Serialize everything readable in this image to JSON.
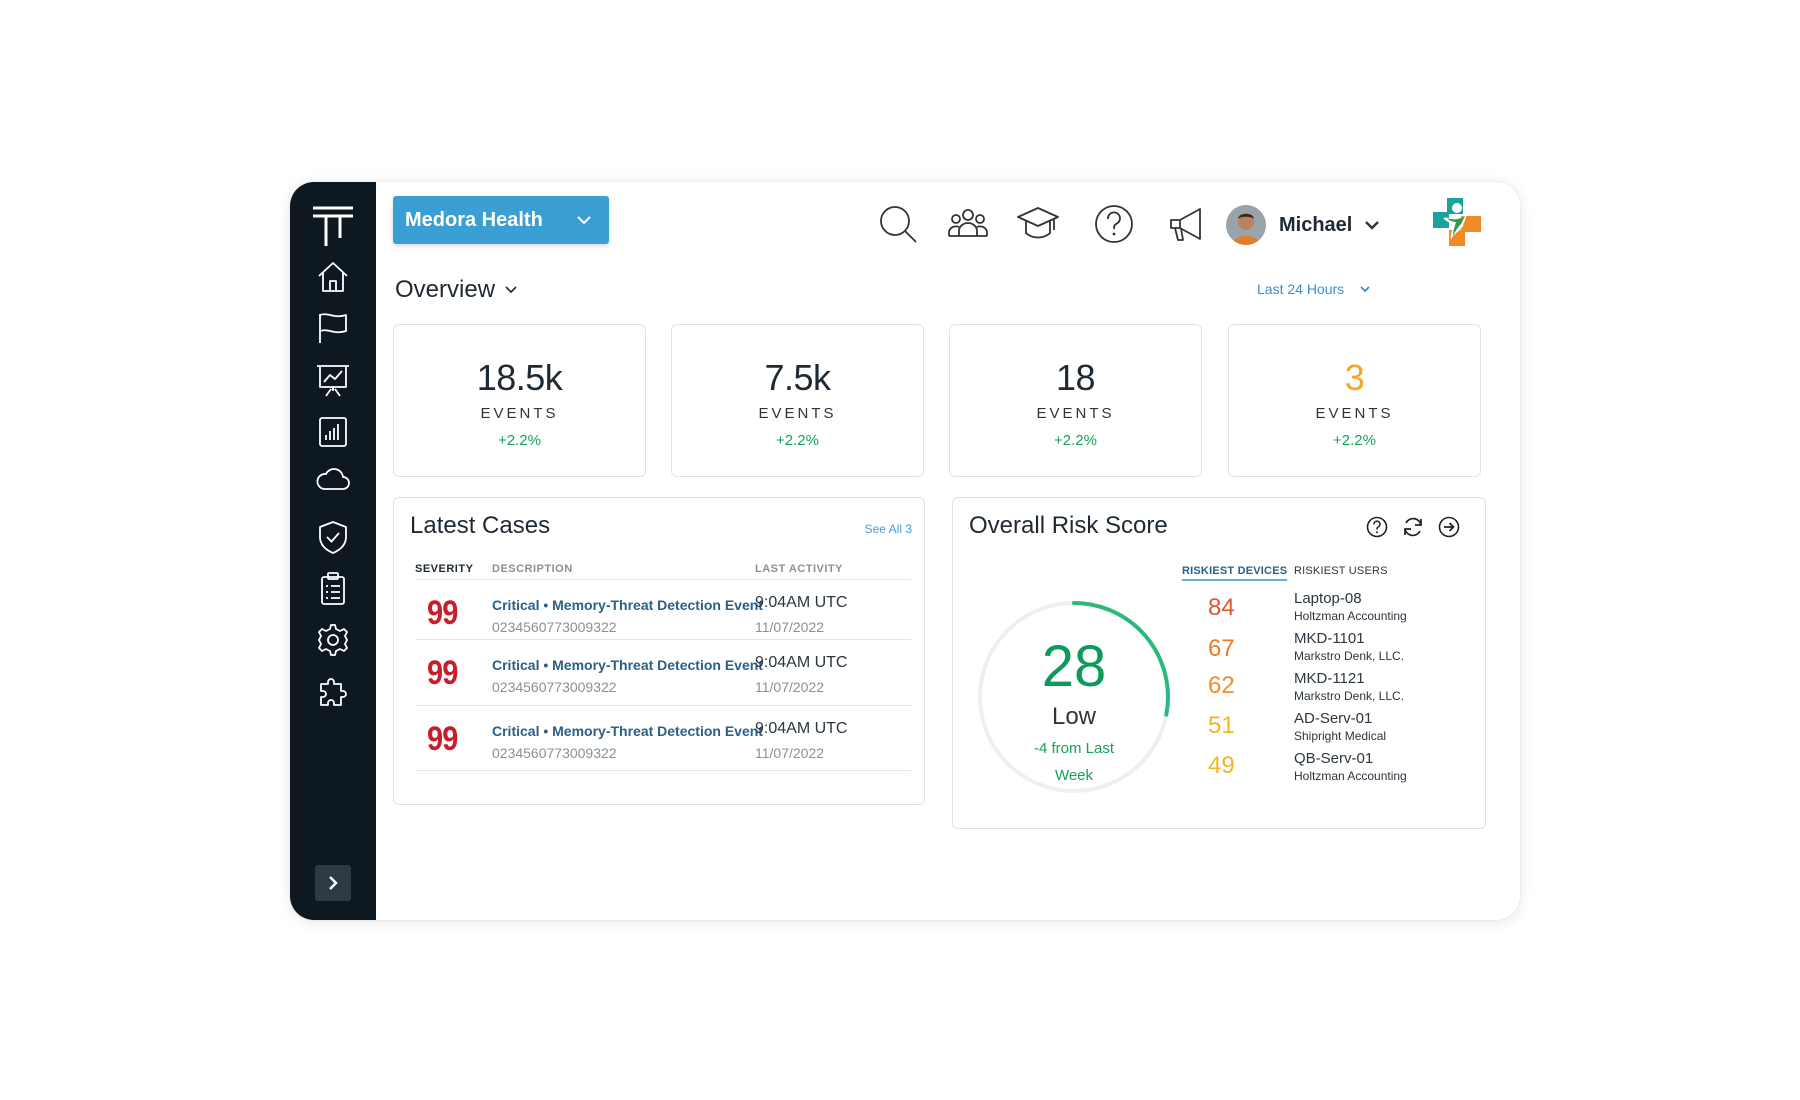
{
  "org_selector": {
    "label": "Medora Health"
  },
  "user": {
    "name": "Michael"
  },
  "overview": {
    "title": "Overview",
    "range": "Last 24 Hours"
  },
  "stats": [
    {
      "value": "18.5k",
      "label": "EVENTS",
      "delta": "+2.2%",
      "value_color": "#1f2933"
    },
    {
      "value": "7.5k",
      "label": "EVENTS",
      "delta": "+2.2%",
      "value_color": "#1f2933"
    },
    {
      "value": "18",
      "label": "EVENTS",
      "delta": "+2.2%",
      "value_color": "#1f2933"
    },
    {
      "value": "3",
      "label": "EVENTS",
      "delta": "+2.2%",
      "value_color": "#f2a824"
    }
  ],
  "cases": {
    "title": "Latest Cases",
    "see_all": "See All 3",
    "headers": {
      "severity": "SEVERITY",
      "description": "DESCRIPTION",
      "last_activity": "LAST ACTIVITY"
    },
    "rows": [
      {
        "severity": "99",
        "title": "Critical • Memory-Threat Detection Event",
        "id": "0234560773009322",
        "time": "9:04AM UTC",
        "date": "11/07/2022"
      },
      {
        "severity": "99",
        "title": "Critical • Memory-Threat Detection Event",
        "id": "0234560773009322",
        "time": "9:04AM UTC",
        "date": "11/07/2022"
      },
      {
        "severity": "99",
        "title": "Critical • Memory-Threat Detection Event",
        "id": "0234560773009322",
        "time": "9:04AM UTC",
        "date": "11/07/2022"
      }
    ]
  },
  "risk": {
    "title": "Overall Risk Score",
    "score": "28",
    "score_fraction": 0.28,
    "level": "Low",
    "delta": "-4 from Last Week",
    "riskiest_devices_label": "RISKIEST DEVICES",
    "riskiest_users_label": "RISKIEST USERS",
    "items": [
      {
        "score": "84",
        "color": "#e0572b",
        "device": "Laptop-08",
        "org": "Holtzman Accounting"
      },
      {
        "score": "67",
        "color": "#ee7a2a",
        "device": "MKD-1101",
        "org": "Markstro Denk, LLC."
      },
      {
        "score": "62",
        "color": "#ef8d2c",
        "device": "MKD-1121",
        "org": "Markstro Denk, LLC."
      },
      {
        "score": "51",
        "color": "#f2b522",
        "device": "AD-Serv-01",
        "org": "Shipright Medical"
      },
      {
        "score": "49",
        "color": "#f2b522",
        "device": "QB-Serv-01",
        "org": "Holtzman Accounting"
      }
    ]
  },
  "colors": {
    "accent": "#3aa0d3",
    "sidebar": "#0d1820",
    "positive": "#18a05a",
    "critical": "#c81e2b"
  }
}
